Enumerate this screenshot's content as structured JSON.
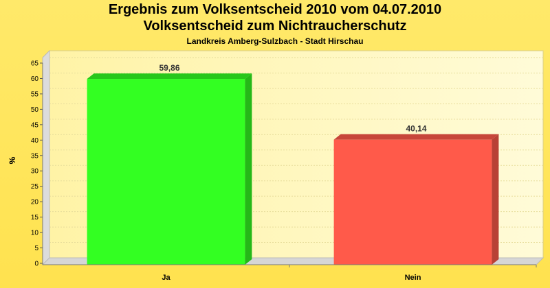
{
  "header": {
    "title": "Ergebnis zum Volksentscheid 2010 vom 04.07.2010",
    "subtitle": "Volksentscheid zum Nichtraucherschutz",
    "region": "Landkreis Amberg-Sulzbach - Stadt Hirschau"
  },
  "chart_data": {
    "type": "bar",
    "categories": [
      "Ja",
      "Nein"
    ],
    "values": [
      59.86,
      40.14
    ],
    "value_labels": [
      "59,86",
      "40,14"
    ],
    "colors": [
      "#33ff22",
      "#ff5a4a"
    ],
    "ylabel": "%",
    "ylim": [
      0,
      65
    ],
    "yticks": [
      0,
      5,
      10,
      15,
      20,
      25,
      30,
      35,
      40,
      45,
      50,
      55,
      60,
      65
    ],
    "grid": true,
    "legend": "none"
  }
}
